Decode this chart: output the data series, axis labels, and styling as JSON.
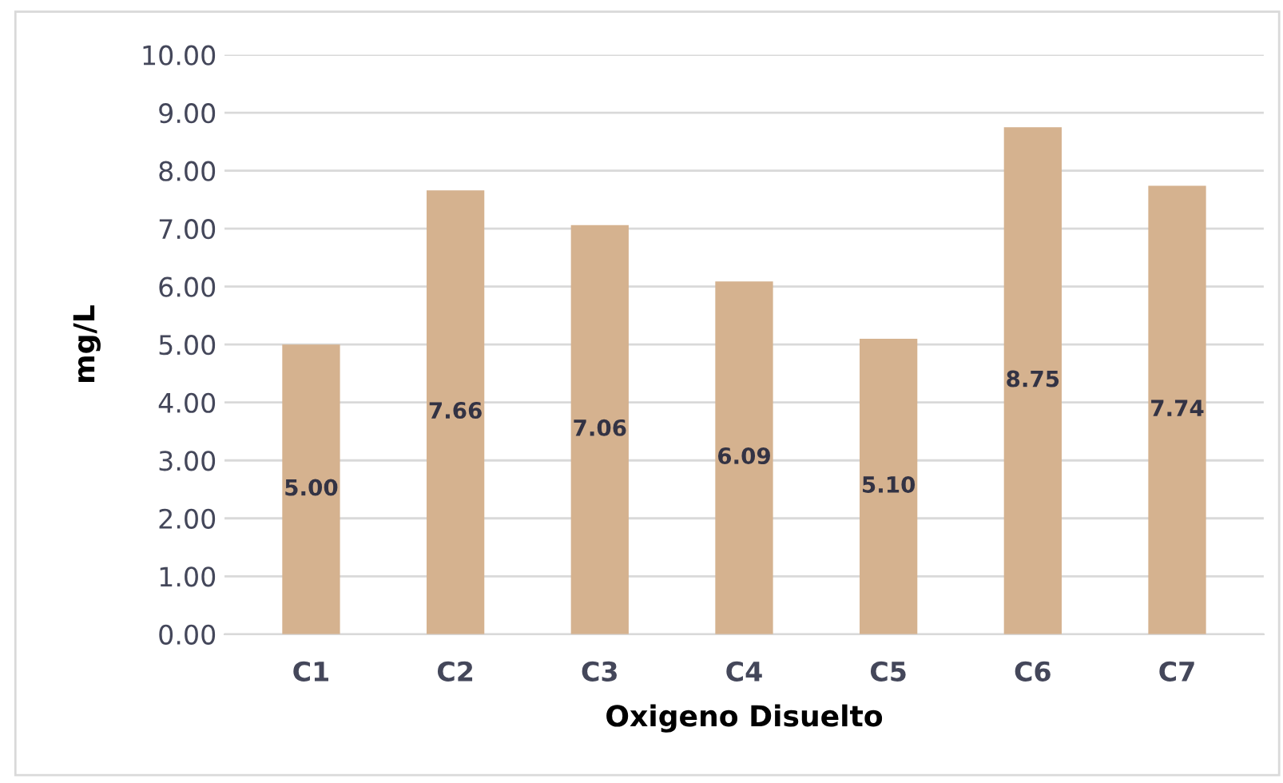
{
  "chart_data": {
    "type": "bar",
    "xlabel": "Oxigeno Disuelto",
    "ylabel": "mg/L",
    "categories": [
      "C1",
      "C2",
      "C3",
      "C4",
      "C5",
      "C6",
      "C7"
    ],
    "values": [
      5.0,
      7.66,
      7.06,
      6.09,
      5.1,
      8.75,
      7.74
    ],
    "value_labels": [
      "5.00",
      "7.66",
      "7.06",
      "6.09",
      "5.10",
      "8.75",
      "7.74"
    ],
    "color": "#d5b28f",
    "ylim": [
      0,
      10
    ],
    "yticks": [
      {
        "value": 0,
        "label": "0.00"
      },
      {
        "value": 1,
        "label": "1.00"
      },
      {
        "value": 2,
        "label": "2.00"
      },
      {
        "value": 3,
        "label": "3.00"
      },
      {
        "value": 4,
        "label": "4.00"
      },
      {
        "value": 5,
        "label": "5.00"
      },
      {
        "value": 6,
        "label": "6.00"
      },
      {
        "value": 7,
        "label": "7.00"
      },
      {
        "value": 8,
        "label": "8.00"
      },
      {
        "value": 9,
        "label": "9.00"
      },
      {
        "value": 10,
        "label": "10.00"
      }
    ],
    "grid": "y"
  }
}
